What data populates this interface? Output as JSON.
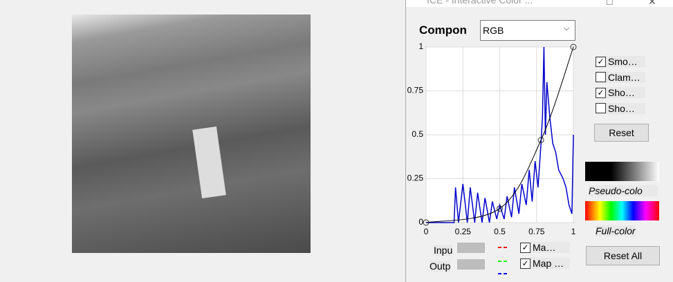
{
  "window": {
    "title": "ICE - Interactive Color ..."
  },
  "component": {
    "label": "Compon",
    "value": "RGB"
  },
  "plot": {
    "xlim": [
      0,
      1
    ],
    "ylim": [
      0,
      1
    ],
    "xticks": [
      0,
      0.25,
      0.5,
      0.75,
      1
    ],
    "yticks": [
      0,
      0.25,
      0.5,
      0.75,
      1
    ],
    "histogram": {
      "color": "#0000cc",
      "x": [
        0,
        0.19,
        0.2,
        0.22,
        0.25,
        0.28,
        0.3,
        0.33,
        0.35,
        0.38,
        0.4,
        0.43,
        0.45,
        0.48,
        0.5,
        0.53,
        0.55,
        0.58,
        0.6,
        0.63,
        0.65,
        0.68,
        0.7,
        0.72,
        0.74,
        0.76,
        0.78,
        0.79,
        0.8,
        0.81,
        0.82,
        0.84,
        0.86,
        0.88,
        0.9,
        0.93,
        0.95,
        0.97,
        0.99,
        1
      ],
      "values": [
        0,
        0,
        0.2,
        0,
        0.22,
        0,
        0.2,
        0,
        0.17,
        0,
        0.14,
        0,
        0.12,
        0.02,
        0.1,
        0.02,
        0.15,
        0.03,
        0.2,
        0.05,
        0.22,
        0.1,
        0.3,
        0.12,
        0.35,
        0.2,
        0.45,
        0.6,
        1,
        0.5,
        0.8,
        0.6,
        0.45,
        0.4,
        0.3,
        0.25,
        0.2,
        0.1,
        0.05,
        0.5
      ]
    },
    "curve": {
      "color": "#000000",
      "x": [
        0,
        0.5,
        0.78,
        1
      ],
      "values": [
        0,
        0.08,
        0.47,
        1
      ]
    }
  },
  "options": [
    {
      "label": "Smo…",
      "checked": true
    },
    {
      "label": "Clam…",
      "checked": false
    },
    {
      "label": "Sho…",
      "checked": true
    },
    {
      "label": "Sho…",
      "checked": false
    }
  ],
  "reset": "Reset",
  "pseudo_color": "Pseudo-colo",
  "full_color": "Full-color",
  "reset_all": "Reset All",
  "input": "Inpu",
  "output": "Outp",
  "map_options": [
    {
      "label": "Ma…",
      "checked": true
    },
    {
      "label": "Map …",
      "checked": true
    }
  ]
}
